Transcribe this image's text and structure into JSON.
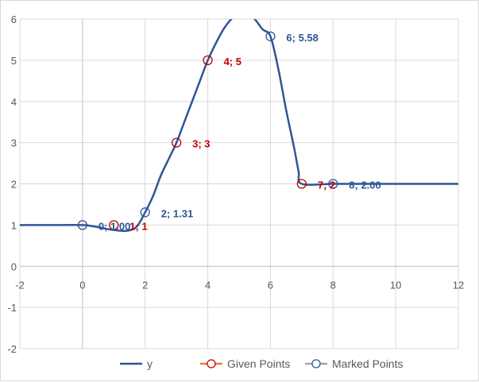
{
  "chart_data": {
    "type": "scatter",
    "xlim": [
      -2,
      12
    ],
    "ylim": [
      -2,
      6
    ],
    "x_ticks": [
      "-2",
      "0",
      "2",
      "4",
      "6",
      "8",
      "10",
      "12"
    ],
    "y_ticks": [
      "-2",
      "-1",
      "0",
      "1",
      "2",
      "3",
      "4",
      "5",
      "6"
    ],
    "grid": true,
    "legend_position": "bottom",
    "series": [
      {
        "name": "y",
        "type": "line",
        "color": "#2f5597",
        "x": [
          -2,
          -1,
          0,
          0.25,
          0.5,
          0.75,
          1,
          1.25,
          1.5,
          1.75,
          2,
          2.25,
          2.5,
          2.75,
          3,
          3.25,
          3.5,
          3.75,
          4,
          4.25,
          4.5,
          4.75,
          5,
          5.25,
          5.5,
          5.75,
          6,
          6.25,
          6.5,
          6.75,
          6.9,
          7,
          8,
          9,
          10,
          11,
          12
        ],
        "y": [
          1,
          1,
          1,
          0.98,
          0.95,
          0.91,
          0.88,
          0.86,
          0.87,
          0.98,
          1.31,
          1.7,
          2.2,
          2.6,
          3.0,
          3.5,
          4.0,
          4.5,
          5.0,
          5.4,
          5.75,
          6.0,
          6.15,
          6.15,
          6.0,
          5.75,
          5.58,
          4.8,
          3.8,
          2.9,
          2.3,
          2.0,
          2.0,
          2.0,
          2.0,
          2.0,
          2.0
        ]
      },
      {
        "name": "Given Points",
        "type": "scatter",
        "color": "#c00000",
        "points": [
          {
            "x": 1,
            "y": 1,
            "label": "1; 1"
          },
          {
            "x": 3,
            "y": 3,
            "label": "3; 3"
          },
          {
            "x": 4,
            "y": 5,
            "label": "4; 5"
          },
          {
            "x": 7,
            "y": 2,
            "label": "7; 2"
          }
        ]
      },
      {
        "name": "Marked Points",
        "type": "scatter",
        "color": "#2f5597",
        "points": [
          {
            "x": 0,
            "y": 1.0,
            "label": "0; 1.00"
          },
          {
            "x": 2,
            "y": 1.31,
            "label": "2; 1.31"
          },
          {
            "x": 6,
            "y": 5.58,
            "label": "6; 5.58"
          },
          {
            "x": 8,
            "y": 2.0,
            "label": "8; 2.00"
          }
        ]
      }
    ],
    "legend": [
      {
        "label": "y",
        "line_color": "#2f5597",
        "marker": "none"
      },
      {
        "label": "Given Points",
        "line_color": "#ed7d31",
        "marker_color": "#c00000"
      },
      {
        "label": "Marked Points",
        "line_color": "#a5a5a5",
        "marker_color": "#2f5597"
      }
    ]
  }
}
